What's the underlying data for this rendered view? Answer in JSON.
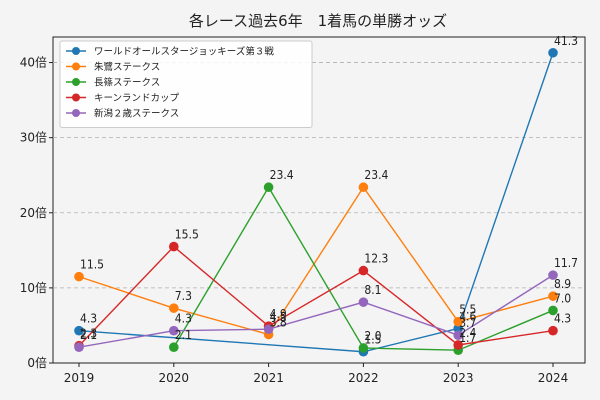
{
  "chart_data": {
    "type": "line",
    "title": "各レース過去6年　1着馬の単勝オッズ",
    "xlabel": "",
    "ylabel": "",
    "categories": [
      "2019",
      "2020",
      "2021",
      "2022",
      "2023",
      "2024"
    ],
    "ylim": [
      0,
      43.4
    ],
    "yticks": [
      0,
      10,
      20,
      30,
      40
    ],
    "ytick_suffix": "倍",
    "grid": true,
    "legend_position": "top-left",
    "series": [
      {
        "name": "ワールドオールスタージョッキーズ第３戦",
        "color": "#1f77b4",
        "values": [
          4.3,
          null,
          null,
          1.5,
          4.6,
          41.3
        ]
      },
      {
        "name": "朱鷺ステークス",
        "color": "#ff7f0e",
        "values": [
          11.5,
          7.3,
          3.8,
          23.4,
          5.5,
          8.9
        ]
      },
      {
        "name": "長篠ステークス",
        "color": "#2ca02c",
        "values": [
          null,
          2.1,
          23.4,
          2.0,
          1.7,
          7.0
        ]
      },
      {
        "name": "キーンランドカップ",
        "color": "#d62728",
        "values": [
          2.3,
          15.5,
          4.9,
          12.3,
          2.4,
          4.3
        ]
      },
      {
        "name": "新潟２歳ステークス",
        "color": "#9467bd",
        "values": [
          2.1,
          4.3,
          4.5,
          8.1,
          3.7,
          11.7
        ]
      }
    ]
  }
}
